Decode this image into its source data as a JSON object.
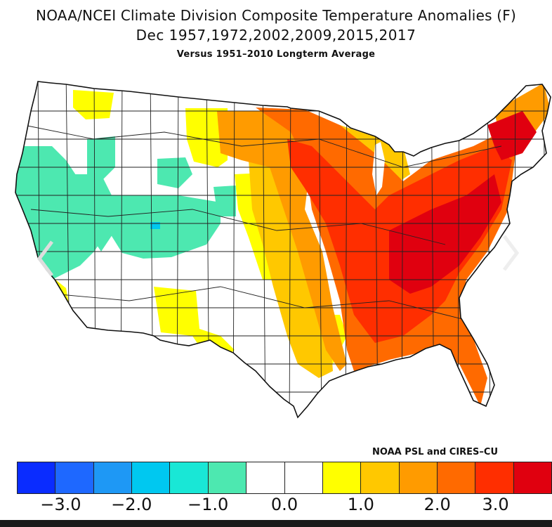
{
  "title": "NOAA/NCEI Climate Division Composite Temperature Anomalies (F)",
  "subtitle": "Dec   1957,1972,2002,2009,2015,2017",
  "subsubtitle": "Versus 1951–2010 Longterm Average",
  "credit": "NOAA PSL and CIRES–CU",
  "colorbar": {
    "colors": [
      "#0a2cff",
      "#1e68ff",
      "#1e98f5",
      "#00c8f0",
      "#19e7d6",
      "#4de8b0",
      "#ffffff",
      "#ffffff",
      "#ffff00",
      "#ffc800",
      "#ff9b00",
      "#ff6a00",
      "#ff2e00",
      "#e0000f"
    ],
    "ticks": [
      {
        "label": "−3.0",
        "value": -3.0
      },
      {
        "label": "−2.0",
        "value": -2.0
      },
      {
        "label": "−1.0",
        "value": -1.0
      },
      {
        "label": "0.0",
        "value": 0.0
      },
      {
        "label": "1.0",
        "value": 1.0
      },
      {
        "label": "2.0",
        "value": 2.0
      },
      {
        "label": "3.0",
        "value": 3.0
      }
    ]
  },
  "regions": {
    "west_cool": "#4de8b0",
    "neutral": "#ffffff",
    "southwest_warm": "#ffff00",
    "plains_warm": "#ffc800",
    "midwest_warm": "#ff9b00",
    "east_warm": "#ff6a00",
    "southeast_hot": "#ff2e00",
    "appalachia_hot": "#e0000f",
    "lake_blue": "#00c8f0"
  },
  "icons": {
    "left_arrow": "chevron-left-icon",
    "right_arrow": "chevron-right-icon"
  }
}
